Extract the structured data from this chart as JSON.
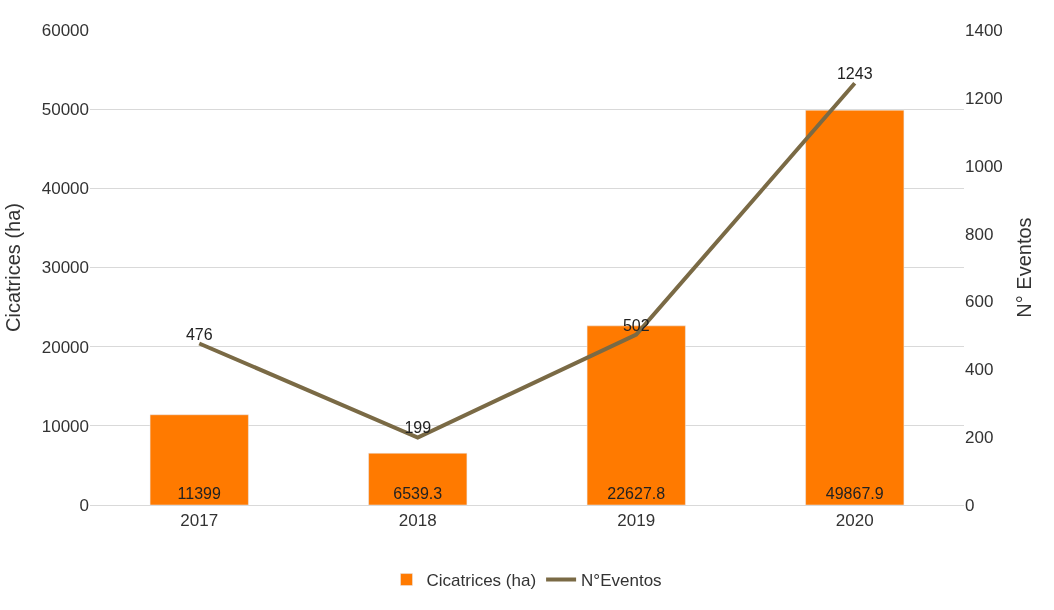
{
  "chart_data": {
    "type": "bar",
    "categories": [
      "2017",
      "2018",
      "2019",
      "2020"
    ],
    "series": [
      {
        "name": "Cicatrices (ha)",
        "color": "#ff7a00",
        "values": [
          11399,
          6539.3,
          22627.8,
          49867.9
        ]
      },
      {
        "name": "N°Eventos",
        "type": "line",
        "axis": "y2",
        "color": "#7a6a45",
        "values": [
          476,
          199,
          502,
          1243
        ]
      }
    ],
    "ylabel": "Cicatrices (ha)",
    "y2label": "N° Eventos",
    "ylim": [
      0,
      60000
    ],
    "yticks": [
      0,
      10000,
      20000,
      30000,
      40000,
      50000,
      60000
    ],
    "y2lim": [
      0,
      1400
    ],
    "y2ticks": [
      0,
      200,
      400,
      600,
      800,
      1000,
      1200,
      1400
    ],
    "data_labels": true,
    "grid": "y",
    "legend": "bottom",
    "marker": "none",
    "line_style": "solid"
  }
}
